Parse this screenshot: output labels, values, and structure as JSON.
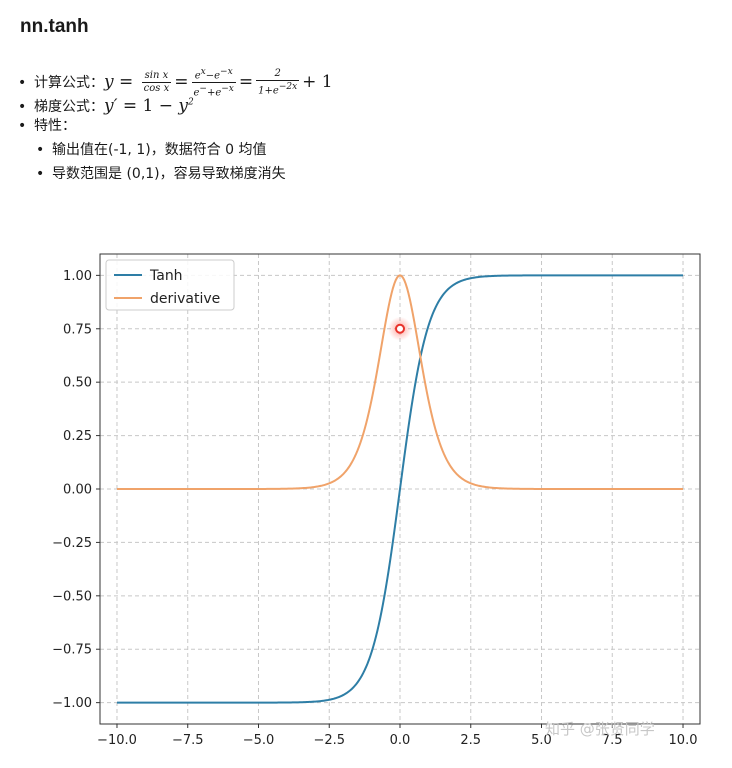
{
  "title": "nn.tanh",
  "bullets": {
    "formula_label": "计算公式：",
    "gradient_label": "梯度公式：",
    "properties_label": "特性：",
    "properties": [
      "输出值在(-1, 1)，数据符合 0 均值",
      "导数范围是 (0,1)，容易导致梯度消失"
    ]
  },
  "watermark": "知乎 @张贤同学",
  "chart_data": {
    "type": "line",
    "x_range": [
      -10,
      10
    ],
    "xlim": [
      -10.6,
      10.6
    ],
    "ylim": [
      -1.1,
      1.1
    ],
    "grid": true,
    "legend_position": "top-left",
    "x_ticks": [
      "−10.0",
      "−7.5",
      "−5.0",
      "−2.5",
      "0.0",
      "2.5",
      "5.0",
      "7.5",
      "10.0"
    ],
    "x_tick_values": [
      -10,
      -7.5,
      -5,
      -2.5,
      0,
      2.5,
      5,
      7.5,
      10
    ],
    "y_ticks": [
      "−1.00",
      "−0.75",
      "−0.50",
      "−0.25",
      "0.00",
      "0.25",
      "0.50",
      "0.75",
      "1.00"
    ],
    "y_tick_values": [
      -1,
      -0.75,
      -0.5,
      -0.25,
      0,
      0.25,
      0.5,
      0.75,
      1
    ],
    "series": [
      {
        "name": "Tanh",
        "function": "tanh(x)",
        "color": "#2e7ea6"
      },
      {
        "name": "derivative",
        "function": "1 - tanh(x)^2",
        "color": "#f0a36a"
      }
    ],
    "highlight_point": {
      "x": 0,
      "y": 0.75,
      "color": "#e8322a"
    }
  }
}
